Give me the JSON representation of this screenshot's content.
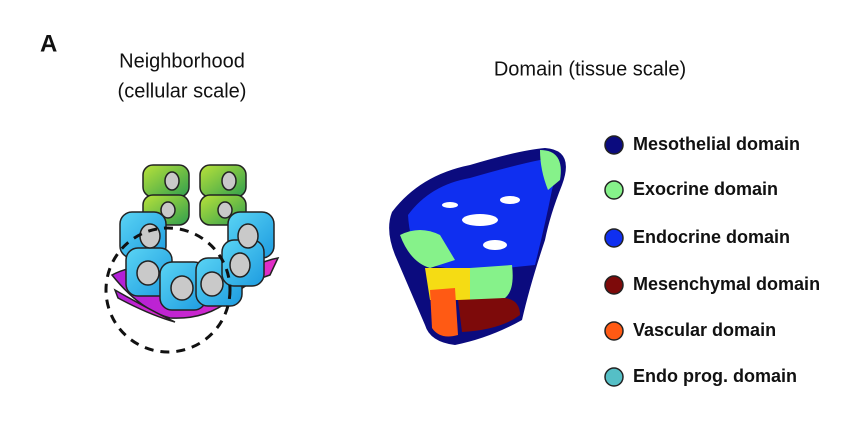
{
  "panel_label": "A",
  "neighborhood": {
    "title": "Neighborhood",
    "subtitle": "(cellular scale)"
  },
  "domain": {
    "title": "Domain (tissue scale)"
  },
  "legend": [
    {
      "label": "Mesothelial domain",
      "color": "#0b0b7e"
    },
    {
      "label": "Exocrine domain",
      "color": "#86f28a"
    },
    {
      "label": "Endocrine domain",
      "color": "#0f2ff0"
    },
    {
      "label": "Mesenchymal domain",
      "color": "#7d0a0a"
    },
    {
      "label": "Vascular domain",
      "color": "#ff5a14"
    },
    {
      "label": "Endo prog. domain",
      "color": "#55bfc6"
    }
  ]
}
